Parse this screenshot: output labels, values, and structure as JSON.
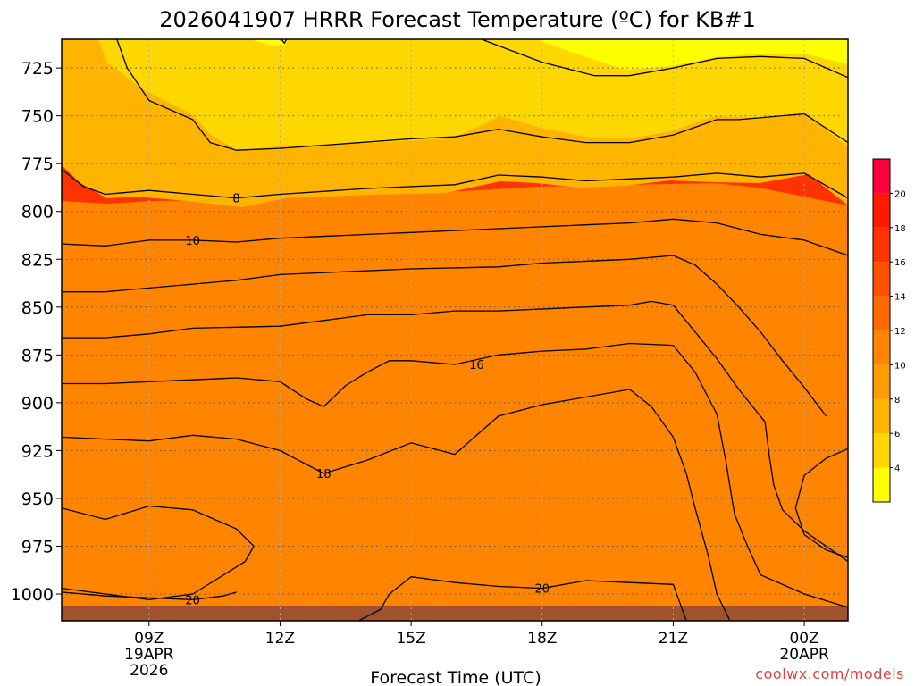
{
  "chart_data": {
    "type": "contour",
    "title": "2026041907 HRRR Forecast Temperature (ºC) for KB#1",
    "xlabel": "Forecast Time (UTC)",
    "ylabel": "",
    "credit": "coolwx.com/models",
    "x_hours_range": [
      7,
      25
    ],
    "y_pressure_range": [
      1014,
      710
    ],
    "x_ticks": [
      {
        "hour": 9,
        "lines": [
          "09Z",
          "19APR",
          "2026"
        ]
      },
      {
        "hour": 12,
        "lines": [
          "12Z"
        ]
      },
      {
        "hour": 15,
        "lines": [
          "15Z"
        ]
      },
      {
        "hour": 18,
        "lines": [
          "18Z"
        ]
      },
      {
        "hour": 21,
        "lines": [
          "21Z"
        ]
      },
      {
        "hour": 24,
        "lines": [
          "00Z",
          "20APR"
        ]
      }
    ],
    "y_ticks": [
      "725",
      "750",
      "775",
      "800",
      "825",
      "850",
      "875",
      "900",
      "925",
      "950",
      "975",
      "1000"
    ],
    "grid": true,
    "colorbar": {
      "levels": [
        2,
        4,
        6,
        8,
        10,
        12,
        14,
        16,
        18,
        20,
        22
      ],
      "tick_labels": [
        "4",
        "6",
        "8",
        "10",
        "12",
        "14",
        "16",
        "18",
        "20"
      ],
      "colors": [
        "#ffff00",
        "#ffd700",
        "#ffb400",
        "#ff9c00",
        "#ff8400",
        "#ff6a00",
        "#ff5000",
        "#ff3300",
        "#ff1a00",
        "#ff0040"
      ]
    },
    "contours": [
      {
        "level": 6,
        "label": "",
        "points": [
          [
            8.25,
            709
          ],
          [
            8.5,
            725
          ],
          [
            9,
            742
          ],
          [
            10,
            752
          ],
          [
            10.4,
            764
          ],
          [
            11,
            768
          ],
          [
            12,
            767
          ],
          [
            15,
            762
          ],
          [
            16,
            761
          ],
          [
            17,
            757
          ],
          [
            18,
            761
          ],
          [
            19,
            764
          ],
          [
            20,
            764
          ],
          [
            21,
            760
          ],
          [
            22,
            752
          ],
          [
            22.5,
            752
          ],
          [
            24,
            749
          ],
          [
            25,
            764
          ]
        ]
      },
      {
        "level": 6,
        "label": "",
        "points": [
          [
            12,
            709
          ],
          [
            12.1,
            712
          ],
          [
            12.2,
            708
          ]
        ]
      },
      {
        "level": 4,
        "label": "",
        "points": [
          [
            16.5,
            709
          ],
          [
            18,
            722
          ],
          [
            19.2,
            729
          ],
          [
            20,
            729
          ],
          [
            21,
            725
          ],
          [
            22,
            720
          ],
          [
            23,
            719
          ],
          [
            24,
            720
          ],
          [
            25,
            730
          ]
        ]
      },
      {
        "level": 8,
        "label": "8",
        "label_at": [
          11,
          793
        ],
        "points": [
          [
            7,
            778
          ],
          [
            7.5,
            787
          ],
          [
            8,
            791
          ],
          [
            9,
            789
          ],
          [
            10,
            791
          ],
          [
            11,
            793
          ],
          [
            12,
            791
          ],
          [
            14,
            788
          ],
          [
            15,
            787
          ],
          [
            16,
            786
          ],
          [
            17,
            781
          ],
          [
            18,
            782
          ],
          [
            19,
            784
          ],
          [
            20,
            783
          ],
          [
            21,
            782
          ],
          [
            22,
            780
          ],
          [
            23,
            782
          ],
          [
            24,
            780
          ],
          [
            25,
            793
          ]
        ]
      },
      {
        "level": 10,
        "label": "10",
        "label_at": [
          10,
          815
        ],
        "points": [
          [
            7,
            817
          ],
          [
            8,
            818
          ],
          [
            9,
            815
          ],
          [
            10,
            815
          ],
          [
            11,
            816
          ],
          [
            12,
            814
          ],
          [
            14,
            812
          ],
          [
            15,
            811
          ],
          [
            17,
            809
          ],
          [
            18,
            808
          ],
          [
            19,
            807
          ],
          [
            20,
            806
          ],
          [
            21,
            804
          ],
          [
            22,
            806
          ],
          [
            23,
            812
          ],
          [
            24,
            815
          ],
          [
            25,
            823
          ]
        ]
      },
      {
        "level": 12,
        "label": "",
        "points": [
          [
            7,
            842
          ],
          [
            8,
            842
          ],
          [
            9,
            840
          ],
          [
            10,
            838
          ],
          [
            11,
            836
          ],
          [
            12,
            833
          ],
          [
            15,
            830
          ],
          [
            17,
            829
          ],
          [
            18,
            827
          ],
          [
            20,
            825
          ],
          [
            21,
            823
          ],
          [
            21.5,
            828
          ],
          [
            22,
            838
          ],
          [
            22.5,
            850
          ],
          [
            23,
            863
          ],
          [
            23.5,
            878
          ],
          [
            24,
            892
          ],
          [
            24.5,
            907
          ]
        ]
      },
      {
        "level": 14,
        "label": "",
        "points": [
          [
            7,
            866
          ],
          [
            8,
            866
          ],
          [
            9,
            864
          ],
          [
            10,
            861
          ],
          [
            12,
            860
          ],
          [
            13,
            857
          ],
          [
            14,
            854
          ],
          [
            15,
            854
          ],
          [
            16,
            852
          ],
          [
            17,
            852
          ],
          [
            19,
            850
          ],
          [
            20,
            849
          ],
          [
            20.5,
            847
          ],
          [
            21,
            849
          ],
          [
            21.5,
            863
          ],
          [
            22,
            877
          ],
          [
            22.5,
            893
          ],
          [
            23.1,
            910
          ],
          [
            23.2,
            928
          ],
          [
            23.3,
            943
          ],
          [
            23.5,
            956
          ],
          [
            24,
            967
          ],
          [
            25,
            983
          ]
        ]
      },
      {
        "level": 16,
        "label": "16",
        "label_at": [
          16.5,
          880
        ],
        "points": [
          [
            7,
            890
          ],
          [
            8,
            890
          ],
          [
            9,
            889
          ],
          [
            10,
            888
          ],
          [
            11,
            887
          ],
          [
            12,
            889
          ],
          [
            12.6,
            898
          ],
          [
            13,
            902
          ],
          [
            13.5,
            891
          ],
          [
            14,
            884
          ],
          [
            14.5,
            878
          ],
          [
            15,
            878
          ],
          [
            16,
            880
          ],
          [
            17,
            875
          ],
          [
            18,
            873
          ],
          [
            19,
            872
          ],
          [
            20,
            869
          ],
          [
            21,
            870
          ],
          [
            21.5,
            884
          ],
          [
            22,
            906
          ],
          [
            22.2,
            930
          ],
          [
            22.4,
            958
          ],
          [
            22.7,
            975
          ],
          [
            23,
            990
          ],
          [
            24,
            1000
          ],
          [
            25,
            1007
          ]
        ]
      },
      {
        "level": 16,
        "label": "",
        "points": [
          [
            25,
            924
          ],
          [
            24.5,
            929
          ],
          [
            24,
            938
          ],
          [
            23.8,
            955
          ],
          [
            24,
            969
          ],
          [
            24.5,
            977
          ],
          [
            25,
            981
          ]
        ]
      },
      {
        "level": 18,
        "label": "18",
        "label_at": [
          13,
          937
        ],
        "points": [
          [
            7,
            918
          ],
          [
            8,
            919
          ],
          [
            9,
            920
          ],
          [
            10,
            917
          ],
          [
            11,
            919
          ],
          [
            12,
            925
          ],
          [
            13,
            937
          ],
          [
            14,
            930
          ],
          [
            15,
            921
          ],
          [
            16,
            927
          ],
          [
            16.5,
            917
          ],
          [
            17,
            907
          ],
          [
            18,
            901
          ],
          [
            19,
            897
          ],
          [
            20,
            893
          ],
          [
            20.5,
            902
          ],
          [
            21,
            918
          ],
          [
            21.3,
            937
          ],
          [
            21.5,
            955
          ],
          [
            21.8,
            980
          ],
          [
            22,
            1000
          ],
          [
            22.3,
            1014
          ]
        ]
      },
      {
        "level": 20,
        "label": "",
        "points": [
          [
            7,
            955
          ],
          [
            8,
            961
          ],
          [
            9,
            954
          ],
          [
            10,
            956
          ],
          [
            11,
            966
          ],
          [
            11.4,
            975
          ],
          [
            11.2,
            983
          ],
          [
            10.5,
            993
          ],
          [
            10,
            1000
          ],
          [
            9,
            1003
          ],
          [
            8,
            1000
          ],
          [
            7,
            997
          ]
        ]
      },
      {
        "level": 20,
        "label": "20",
        "label_at": [
          18,
          997
        ],
        "points": [
          [
            13.8,
            1014
          ],
          [
            14.3,
            1008
          ],
          [
            14.5,
            1000
          ],
          [
            15,
            991
          ],
          [
            16,
            994
          ],
          [
            17,
            996
          ],
          [
            18,
            997
          ],
          [
            19,
            993
          ],
          [
            20,
            994
          ],
          [
            21,
            995
          ],
          [
            21.3,
            1014
          ]
        ]
      },
      {
        "level": 20,
        "label": "20",
        "label_at": [
          10,
          1003
        ],
        "points": [
          [
            7,
            999
          ],
          [
            8,
            1001
          ],
          [
            9,
            1002
          ],
          [
            10,
            1003
          ],
          [
            10.7,
            1001
          ],
          [
            11,
            999
          ]
        ]
      }
    ],
    "surface_fill": "#a0522d"
  }
}
